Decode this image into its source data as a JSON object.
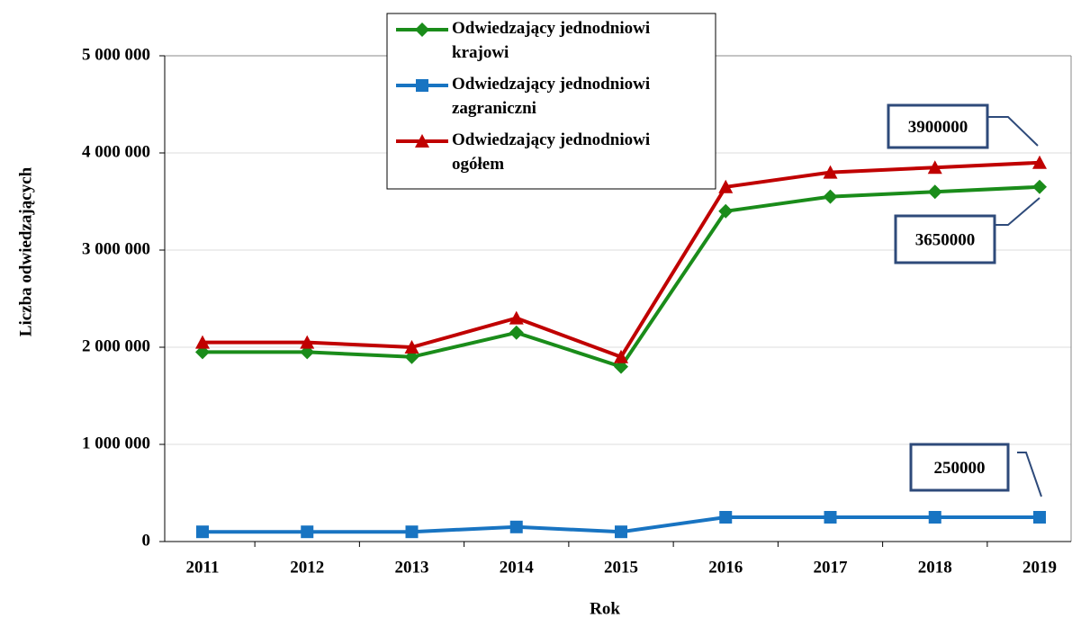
{
  "chart_data": {
    "type": "line",
    "y_label": "Liczba odwiedzających",
    "x_label": "Rok",
    "categories": [
      "2011",
      "2012",
      "2013",
      "2014",
      "2015",
      "2016",
      "2017",
      "2018",
      "2019"
    ],
    "series": [
      {
        "name": "Odwiedzający jednodniowi krajowi",
        "color": "#1a8c1a",
        "marker": "diamond",
        "values": [
          1950000,
          1950000,
          1900000,
          2150000,
          1800000,
          3400000,
          3550000,
          3600000,
          3650000
        ]
      },
      {
        "name": "Odwiedzający jednodniowi zagraniczni",
        "color": "#1874c2",
        "marker": "square",
        "values": [
          100000,
          100000,
          100000,
          150000,
          100000,
          250000,
          250000,
          250000,
          250000
        ]
      },
      {
        "name": "Odwiedzający jednodniowi ogółem",
        "color": "#c00000",
        "marker": "triangle",
        "values": [
          2050000,
          2050000,
          2000000,
          2300000,
          1900000,
          3650000,
          3800000,
          3850000,
          3900000
        ]
      }
    ],
    "ylim": [
      0,
      5000000
    ],
    "yticks": [
      0,
      {
        "value": 1000000,
        "label": "1 000 000"
      },
      {
        "value": 2000000,
        "label": "2 000 000"
      },
      {
        "value": 3000000,
        "label": "3 000 000"
      },
      {
        "value": 4000000,
        "label": "4 000 000"
      },
      {
        "value": 5000000,
        "label": "5 000 000"
      }
    ],
    "grid": true
  }
}
